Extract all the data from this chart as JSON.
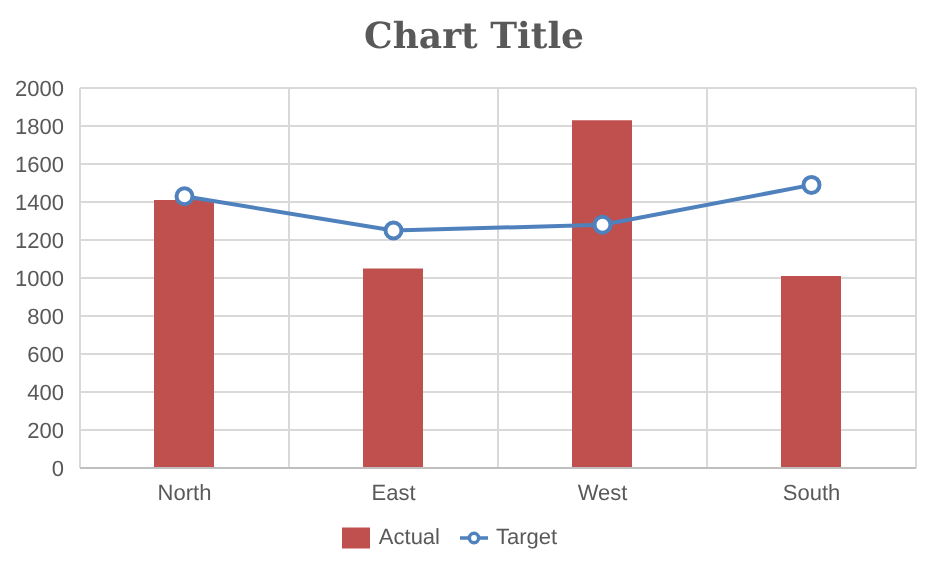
{
  "chart_data": {
    "type": "bar",
    "title": "Chart Title",
    "categories": [
      "North",
      "East",
      "West",
      "South"
    ],
    "series": [
      {
        "name": "Actual",
        "color": "#c0504d",
        "values": [
          1410,
          1050,
          1830,
          1010
        ]
      },
      {
        "name": "Target",
        "type": "line",
        "color": "#4f81bd",
        "values": [
          1430,
          1250,
          1280,
          1490
        ],
        "marker": "circle"
      }
    ],
    "ylim": [
      0,
      2000
    ],
    "yticks": [
      0,
      200,
      400,
      600,
      800,
      1000,
      1200,
      1400,
      1600,
      1800,
      2000
    ],
    "grid": true,
    "legend": "bottom"
  }
}
